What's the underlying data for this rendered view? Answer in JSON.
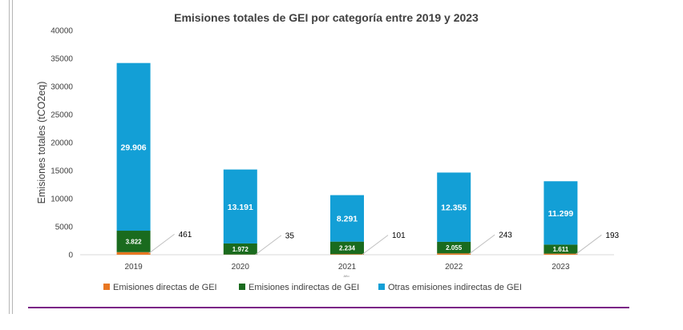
{
  "chart_data": {
    "type": "bar",
    "stacked": true,
    "title": "Emisiones totales de GEI por categoría entre 2019 y 2023",
    "xlabel": "Año",
    "ylabel": "Emisiones totales (tCO2eq)",
    "ylim": [
      0,
      40000
    ],
    "yticks": [
      "0",
      "5000",
      "10000",
      "15000",
      "20000",
      "25000",
      "30000",
      "35000",
      "40000"
    ],
    "categories": [
      "2019",
      "2020",
      "2021",
      "2022",
      "2023"
    ],
    "legend_position": "bottom",
    "grid": false,
    "series": [
      {
        "name": "Emisiones directas de GEI",
        "color": "#e87722",
        "values": [
          461,
          35,
          101,
          243,
          193
        ],
        "labels": [
          "461",
          "35",
          "101",
          "243",
          "193"
        ]
      },
      {
        "name": "Emisiones indirectas de GEI",
        "color": "#1a6b1e",
        "values": [
          3822,
          1972,
          2234,
          2055,
          1611
        ],
        "labels": [
          "3.822",
          "1.972",
          "2.234",
          "2.055",
          "1.611"
        ]
      },
      {
        "name": "Otras emisiones indirectas de GEI",
        "color": "#139fd6",
        "values": [
          29906,
          13191,
          8291,
          12355,
          11299
        ],
        "labels": [
          "29.906",
          "13.191",
          "8.291",
          "12.355",
          "11.299"
        ]
      }
    ]
  }
}
